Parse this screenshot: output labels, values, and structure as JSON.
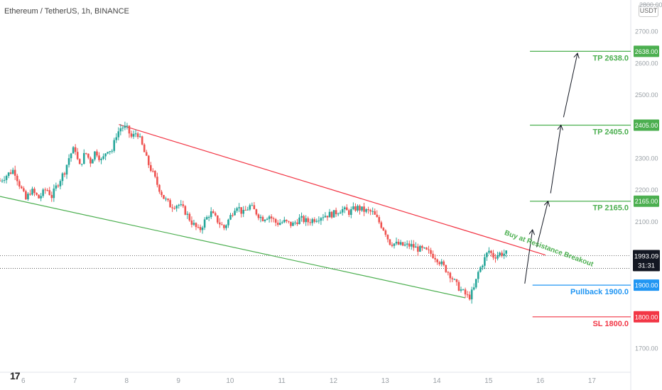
{
  "symbol_title": "Ethereum / TetherUS, 1h, BINANCE",
  "currency_badge": "USDT",
  "top_axis_value": "2800.00",
  "logo_text": "17",
  "colors": {
    "up": "#26a69a",
    "down": "#ef5350",
    "target": "#4caf50",
    "pullback": "#2196f3",
    "stoploss": "#f23645",
    "resistance": "#f23645",
    "support": "#4caf50",
    "current_price_bg": "#131722",
    "axis_text": "#9aa0a6"
  },
  "chart_data": {
    "type": "candlestick",
    "ylim": [
      1625,
      2800
    ],
    "y_ticks": [
      {
        "value": 2700,
        "label": "2700.00"
      },
      {
        "value": 2600,
        "label": "2600.00"
      },
      {
        "value": 2500,
        "label": "2500.00"
      },
      {
        "value": 2400,
        "label": "2400.00"
      },
      {
        "value": 2300,
        "label": "2300.00"
      },
      {
        "value": 2200,
        "label": "2200.00"
      },
      {
        "value": 2100,
        "label": "2100.00"
      },
      {
        "value": 2000,
        "label": "2000.00"
      },
      {
        "value": 1700,
        "label": "1700.00"
      }
    ],
    "x_ticks": [
      {
        "day": 6,
        "label": "6"
      },
      {
        "day": 7,
        "label": "7"
      },
      {
        "day": 8,
        "label": "8"
      },
      {
        "day": 9,
        "label": "9"
      },
      {
        "day": 10,
        "label": "10"
      },
      {
        "day": 11,
        "label": "11"
      },
      {
        "day": 12,
        "label": "12"
      },
      {
        "day": 13,
        "label": "13"
      },
      {
        "day": 14,
        "label": "14"
      },
      {
        "day": 15,
        "label": "15"
      },
      {
        "day": 16,
        "label": "16"
      },
      {
        "day": 17,
        "label": "17"
      }
    ],
    "x_range": [
      5.55,
      17.75
    ],
    "price_path": [
      [
        5.55,
        2230
      ],
      [
        5.7,
        2250
      ],
      [
        5.82,
        2265
      ],
      [
        5.92,
        2220
      ],
      [
        6.05,
        2170
      ],
      [
        6.15,
        2200
      ],
      [
        6.3,
        2175
      ],
      [
        6.45,
        2205
      ],
      [
        6.55,
        2180
      ],
      [
        6.65,
        2215
      ],
      [
        6.8,
        2260
      ],
      [
        6.9,
        2310
      ],
      [
        7.0,
        2335
      ],
      [
        7.08,
        2270
      ],
      [
        7.2,
        2320
      ],
      [
        7.3,
        2290
      ],
      [
        7.4,
        2325
      ],
      [
        7.52,
        2290
      ],
      [
        7.62,
        2330
      ],
      [
        7.72,
        2325
      ],
      [
        7.8,
        2375
      ],
      [
        7.9,
        2400
      ],
      [
        8.0,
        2395
      ],
      [
        8.1,
        2365
      ],
      [
        8.2,
        2385
      ],
      [
        8.3,
        2340
      ],
      [
        8.4,
        2290
      ],
      [
        8.5,
        2255
      ],
      [
        8.6,
        2215
      ],
      [
        8.72,
        2175
      ],
      [
        8.85,
        2150
      ],
      [
        9.0,
        2155
      ],
      [
        9.12,
        2135
      ],
      [
        9.25,
        2100
      ],
      [
        9.4,
        2070
      ],
      [
        9.5,
        2100
      ],
      [
        9.62,
        2130
      ],
      [
        9.75,
        2105
      ],
      [
        9.88,
        2080
      ],
      [
        10.0,
        2115
      ],
      [
        10.12,
        2155
      ],
      [
        10.25,
        2125
      ],
      [
        10.38,
        2150
      ],
      [
        10.5,
        2130
      ],
      [
        10.62,
        2110
      ],
      [
        10.75,
        2120
      ],
      [
        10.9,
        2095
      ],
      [
        11.05,
        2100
      ],
      [
        11.2,
        2090
      ],
      [
        11.35,
        2110
      ],
      [
        11.5,
        2100
      ],
      [
        11.65,
        2110
      ],
      [
        11.8,
        2120
      ],
      [
        12.0,
        2125
      ],
      [
        12.15,
        2140
      ],
      [
        12.3,
        2130
      ],
      [
        12.45,
        2145
      ],
      [
        12.6,
        2135
      ],
      [
        12.75,
        2130
      ],
      [
        12.9,
        2095
      ],
      [
        13.0,
        2070
      ],
      [
        13.08,
        2035
      ],
      [
        13.2,
        2030
      ],
      [
        13.35,
        2025
      ],
      [
        13.5,
        2025
      ],
      [
        13.62,
        2015
      ],
      [
        13.75,
        2010
      ],
      [
        13.88,
        2000
      ],
      [
        14.0,
        1985
      ],
      [
        14.12,
        1960
      ],
      [
        14.25,
        1935
      ],
      [
        14.38,
        1900
      ],
      [
        14.52,
        1875
      ],
      [
        14.62,
        1860
      ],
      [
        14.72,
        1890
      ],
      [
        14.8,
        1940
      ],
      [
        14.9,
        1975
      ],
      [
        15.0,
        2010
      ],
      [
        15.1,
        1990
      ],
      [
        15.22,
        2000
      ],
      [
        15.35,
        2000
      ]
    ],
    "support_line": {
      "x": [
        5.55,
        14.55
      ],
      "y": [
        2180,
        1860
      ]
    },
    "resistance_line": {
      "x": [
        7.85,
        16.1
      ],
      "y": [
        2407,
        1995
      ]
    },
    "dotted_lines": [
      1993.09,
      1953
    ],
    "targets": [
      {
        "label": "TP 2638.0",
        "value": 2638,
        "axis_label": "2638.00",
        "role": "tp"
      },
      {
        "label": "TP 2405.0",
        "value": 2405,
        "axis_label": "2405.00",
        "role": "tp"
      },
      {
        "label": "TP 2165.0",
        "value": 2165,
        "axis_label": "2165.00",
        "role": "tp"
      },
      {
        "label": "Pullback 1900.0",
        "value": 1900,
        "axis_label": "1900.00",
        "role": "pullback"
      },
      {
        "label": "SL 1800.0",
        "value": 1800,
        "axis_label": "1800.00",
        "role": "sl"
      }
    ],
    "level_x_start": {
      "tp": 15.8,
      "pullback": 15.85,
      "sl": 15.85
    },
    "projection_arrows": [
      {
        "from": [
          15.7,
          1905
        ],
        "to": [
          15.85,
          2075
        ]
      },
      {
        "from": [
          15.93,
          2020
        ],
        "to": [
          16.15,
          2165
        ]
      },
      {
        "from": [
          16.2,
          2190
        ],
        "to": [
          16.4,
          2405
        ]
      },
      {
        "from": [
          16.45,
          2430
        ],
        "to": [
          16.72,
          2632
        ]
      }
    ],
    "current_price": {
      "value": 1993.09,
      "label": "1993.09",
      "countdown": "31:31"
    },
    "annotation": {
      "text": "Buy at Resistance Breakout",
      "x": 15.3,
      "y": 2060,
      "angle": 20
    }
  }
}
